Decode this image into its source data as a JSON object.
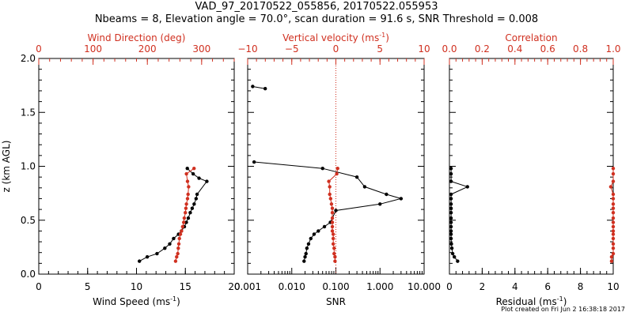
{
  "title_line1": "VAD_97_20170522_055856, 20170522.055953",
  "title_line2": "Nbeams = 8, Elevation angle = 70.0°, scan duration = 91.6 s, SNR Threshold = 0.008",
  "footer": "Plot created on Fri Jun  2 16:38:18 2017",
  "colors": {
    "primary": "#000000",
    "secondary": "#d03020"
  },
  "chart_data": [
    {
      "type": "line",
      "ylabel": "z (km AGL)",
      "ylim": [
        0,
        2
      ],
      "yticks": [
        "0.0",
        "0.5",
        "1.0",
        "1.5",
        "2.0"
      ],
      "bottom_axis": {
        "label": "Wind Speed (ms",
        "label_sup": "-1",
        "label_end": ")",
        "lim": [
          0,
          20
        ],
        "ticks": [
          "0",
          "5",
          "10",
          "15",
          "20"
        ]
      },
      "top_axis": {
        "label": "Wind Direction (deg)",
        "lim": [
          0,
          360
        ],
        "ticks": [
          "0",
          "100",
          "200",
          "300"
        ]
      },
      "series": [
        {
          "axis": "bottom",
          "color": "#000000",
          "x": [
            10.3,
            11.1,
            12.1,
            12.9,
            13.4,
            13.8,
            14.3,
            14.6,
            14.9,
            15.1,
            15.3,
            15.5,
            15.7,
            15.9,
            16.1,
            16.2,
            17.2,
            16.4,
            15.8,
            15.2
          ],
          "y": [
            0.12,
            0.16,
            0.19,
            0.24,
            0.28,
            0.33,
            0.37,
            0.4,
            0.44,
            0.48,
            0.52,
            0.57,
            0.61,
            0.65,
            0.7,
            0.74,
            0.86,
            0.89,
            0.93,
            0.98
          ]
        },
        {
          "axis": "top",
          "color": "#d03020",
          "x": [
            252,
            254,
            256,
            257,
            258,
            259,
            261,
            263,
            265,
            267,
            268,
            270,
            271,
            272,
            274,
            275,
            276,
            274,
            272,
            286
          ],
          "y": [
            0.12,
            0.16,
            0.19,
            0.24,
            0.28,
            0.33,
            0.37,
            0.4,
            0.44,
            0.48,
            0.52,
            0.57,
            0.61,
            0.65,
            0.7,
            0.74,
            0.81,
            0.86,
            0.93,
            0.98
          ]
        }
      ]
    },
    {
      "type": "line",
      "ylim": [
        0,
        2
      ],
      "bottom_axis": {
        "label": "SNR",
        "scale": "log",
        "lim": [
          0.001,
          10
        ],
        "ticks": [
          "0.001",
          "0.010",
          "0.100",
          "1.000",
          "10.000"
        ]
      },
      "top_axis": {
        "label": "Vertical velocity (ms",
        "label_sup": "-1",
        "label_end": ")",
        "lim": [
          -10,
          10
        ],
        "ticks": [
          "−10",
          "−5",
          "0",
          "5",
          "10"
        ]
      },
      "reference_line": {
        "axis": "top",
        "x": 0,
        "style": "dotted"
      },
      "series": [
        {
          "axis": "bottom",
          "color": "#000000",
          "segments": [
            {
              "x": [
                0.0013,
                0.0025
              ],
              "y": [
                1.74,
                1.72
              ]
            },
            {
              "x": [
                0.019,
                0.02,
                0.021,
                0.022,
                0.024,
                0.027,
                0.032,
                0.04,
                0.055,
                0.075,
                0.1,
                1.0,
                3.0,
                1.4,
                0.45,
                0.3,
                0.05,
                0.0014
              ],
              "y": [
                0.12,
                0.16,
                0.19,
                0.24,
                0.28,
                0.33,
                0.37,
                0.4,
                0.44,
                0.48,
                0.59,
                0.65,
                0.7,
                0.74,
                0.81,
                0.9,
                0.98,
                1.04
              ]
            }
          ]
        },
        {
          "axis": "top",
          "color": "#d03020",
          "x": [
            -0.1,
            -0.1,
            -0.2,
            -0.2,
            -0.3,
            -0.3,
            -0.3,
            -0.4,
            -0.4,
            -0.4,
            -0.4,
            -0.4,
            -0.4,
            -0.5,
            -0.6,
            -0.7,
            -0.7,
            -0.8,
            0.1,
            0.2
          ],
          "y": [
            0.12,
            0.16,
            0.19,
            0.24,
            0.28,
            0.33,
            0.37,
            0.4,
            0.44,
            0.48,
            0.52,
            0.57,
            0.61,
            0.65,
            0.7,
            0.74,
            0.81,
            0.86,
            0.93,
            0.98
          ]
        }
      ]
    },
    {
      "type": "line",
      "ylim": [
        0,
        2
      ],
      "bottom_axis": {
        "label": "Residual (ms",
        "label_sup": "-1",
        "label_end": ")",
        "lim": [
          0,
          10
        ],
        "ticks": [
          "0",
          "2",
          "4",
          "6",
          "8",
          "10"
        ]
      },
      "top_axis": {
        "label": "Correlation",
        "lim": [
          0,
          1
        ],
        "ticks": [
          "0.0",
          "0.2",
          "0.4",
          "0.6",
          "0.8",
          "1.0"
        ]
      },
      "series": [
        {
          "axis": "bottom",
          "color": "#000000",
          "x": [
            0.5,
            0.3,
            0.2,
            0.15,
            0.12,
            0.1,
            0.1,
            0.1,
            0.1,
            0.1,
            0.1,
            0.1,
            0.1,
            0.1,
            0.1,
            0.1,
            1.1,
            0.1,
            0.1,
            0.1
          ],
          "y": [
            0.12,
            0.16,
            0.19,
            0.24,
            0.28,
            0.33,
            0.37,
            0.4,
            0.44,
            0.48,
            0.52,
            0.57,
            0.61,
            0.65,
            0.7,
            0.74,
            0.81,
            0.86,
            0.93,
            0.98
          ]
        },
        {
          "axis": "top",
          "color": "#d03020",
          "x": [
            0.99,
            0.99,
            1.0,
            1.0,
            1.0,
            1.0,
            1.0,
            1.0,
            1.0,
            1.0,
            1.0,
            1.0,
            1.0,
            1.0,
            1.0,
            1.0,
            0.985,
            1.0,
            1.0,
            1.0
          ],
          "y": [
            0.12,
            0.16,
            0.19,
            0.24,
            0.28,
            0.33,
            0.37,
            0.4,
            0.44,
            0.48,
            0.52,
            0.57,
            0.61,
            0.65,
            0.7,
            0.74,
            0.81,
            0.86,
            0.93,
            0.98
          ]
        }
      ]
    }
  ]
}
